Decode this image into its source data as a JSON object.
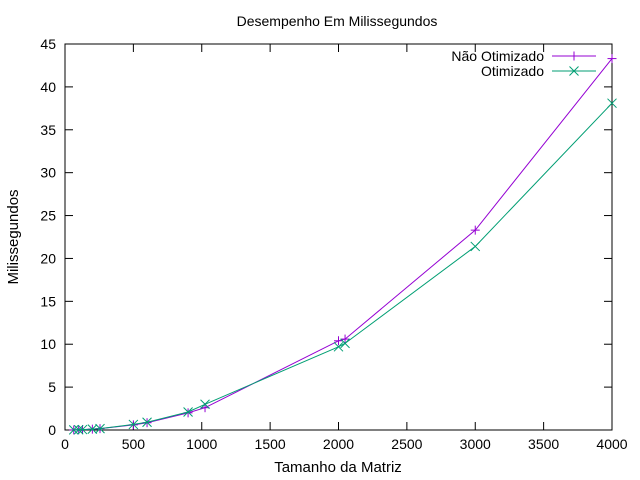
{
  "chart_data": {
    "type": "line",
    "title": "Desempenho Em Milissegundos",
    "xlabel": "Tamanho da Matriz",
    "ylabel": "Milissegundos",
    "xlim": [
      0,
      4000
    ],
    "ylim": [
      0,
      45
    ],
    "xticks": [
      0,
      500,
      1000,
      1500,
      2000,
      2500,
      3000,
      3500,
      4000
    ],
    "yticks": [
      0,
      5,
      10,
      15,
      20,
      25,
      30,
      35,
      40,
      45
    ],
    "grid": false,
    "legend_position": "top-right",
    "series": [
      {
        "name": "Não Otimizado",
        "color": "#9400d3",
        "marker": "plus",
        "x": [
          64,
          100,
          128,
          200,
          256,
          500,
          600,
          900,
          1024,
          2000,
          2048,
          3000,
          4000
        ],
        "y": [
          0.01,
          0.03,
          0.05,
          0.1,
          0.16,
          0.6,
          0.85,
          2.0,
          2.6,
          10.4,
          10.6,
          23.3,
          43.3
        ]
      },
      {
        "name": "Otimizado",
        "color": "#009e73",
        "marker": "cross",
        "x": [
          64,
          100,
          128,
          200,
          256,
          500,
          600,
          900,
          1024,
          2000,
          2048,
          3000,
          4000
        ],
        "y": [
          0.01,
          0.03,
          0.05,
          0.1,
          0.16,
          0.65,
          0.9,
          2.1,
          3.0,
          9.7,
          10.1,
          21.4,
          38.1
        ]
      }
    ]
  }
}
